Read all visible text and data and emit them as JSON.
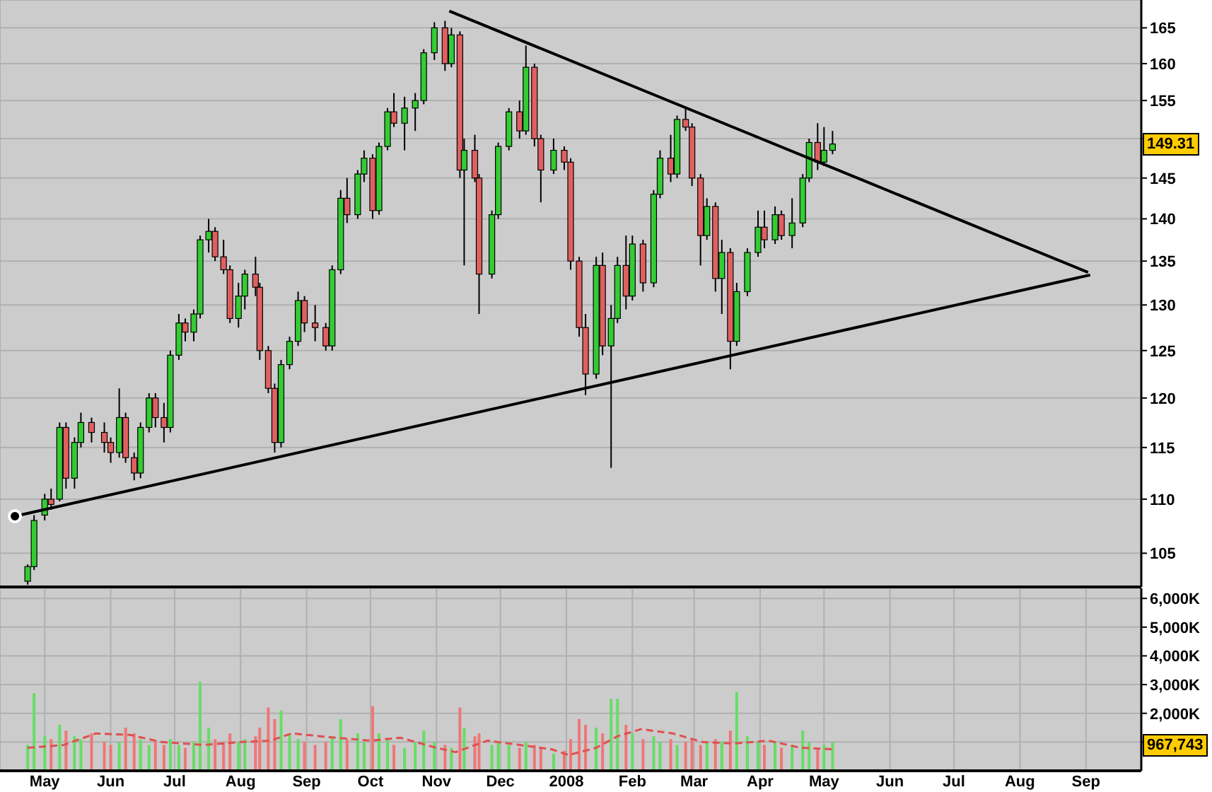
{
  "chart_data": [
    {
      "type": "candlestick",
      "log": true,
      "grid": true,
      "tick_labels": "y",
      "ylim": [
        102,
        169
      ],
      "yticks": [
        105,
        110,
        115,
        120,
        125,
        130,
        135,
        140,
        145,
        {
          "value": 150,
          "label": null
        },
        155,
        160,
        165
      ],
      "xlim": [
        "2007-04-10",
        "2008-09-27"
      ],
      "xticks": [
        {
          "value": "2007-05-01",
          "label": null
        },
        {
          "value": "2007-06-01",
          "label": null
        },
        {
          "value": "2007-07-01",
          "label": null
        },
        {
          "value": "2007-08-01",
          "label": null
        },
        {
          "value": "2007-09-01",
          "label": null
        },
        {
          "value": "2007-10-01",
          "label": null
        },
        {
          "value": "2007-11-01",
          "label": null
        },
        {
          "value": "2007-12-01",
          "label": null
        },
        {
          "value": "2008-01-01",
          "label": null
        },
        {
          "value": "2008-02-01",
          "label": null
        },
        {
          "value": "2008-03-01",
          "label": null
        },
        {
          "value": "2008-04-01",
          "label": null
        },
        {
          "value": "2008-05-01",
          "label": null
        },
        {
          "value": "2008-06-01",
          "label": null
        },
        {
          "value": "2008-07-01",
          "label": null
        },
        {
          "value": "2008-08-01",
          "label": null
        },
        {
          "value": "2008-09-01",
          "label": null
        }
      ],
      "annotations": [
        {
          "text": "149.31",
          "y": 149.31
        }
      ],
      "series": [
        {
          "x": [
            "2007-04-23",
            "2007-04-26",
            "2007-05-01",
            "2007-05-04",
            "2007-05-08",
            "2007-05-11",
            "2007-05-15",
            "2007-05-18",
            "2007-05-23",
            "2007-05-29",
            "2007-06-01",
            "2007-06-05",
            "2007-06-08",
            "2007-06-12",
            "2007-06-15",
            "2007-06-19",
            "2007-06-22",
            "2007-06-26",
            "2007-06-29",
            "2007-07-03",
            "2007-07-06",
            "2007-07-10",
            "2007-07-13",
            "2007-07-17",
            "2007-07-20",
            "2007-07-24",
            "2007-07-27",
            "2007-07-31",
            "2007-08-03",
            "2007-08-08",
            "2007-08-10",
            "2007-08-14",
            "2007-08-17",
            "2007-08-20",
            "2007-08-24",
            "2007-08-28",
            "2007-08-31",
            "2007-09-05",
            "2007-09-10",
            "2007-09-13",
            "2007-09-17",
            "2007-09-20",
            "2007-09-25",
            "2007-09-28",
            "2007-10-02",
            "2007-10-05",
            "2007-10-09",
            "2007-10-12",
            "2007-10-17",
            "2007-10-22",
            "2007-10-26",
            "2007-10-31",
            "2007-11-05",
            "2007-11-08",
            "2007-11-12",
            "2007-11-14",
            "2007-11-19",
            "2007-11-21",
            "2007-11-27",
            "2007-11-30",
            "2007-12-05",
            "2007-12-10",
            "2007-12-13",
            "2007-12-17",
            "2007-12-20",
            "2007-12-26",
            "2007-12-31",
            "2008-01-03",
            "2008-01-07",
            "2008-01-10",
            "2008-01-15",
            "2008-01-18",
            "2008-01-22",
            "2008-01-25",
            "2008-01-29",
            "2008-02-01",
            "2008-02-06",
            "2008-02-11",
            "2008-02-14",
            "2008-02-19",
            "2008-02-22",
            "2008-02-26",
            "2008-02-29",
            "2008-03-04",
            "2008-03-07",
            "2008-03-11",
            "2008-03-14",
            "2008-03-18",
            "2008-03-21",
            "2008-03-26",
            "2008-03-31",
            "2008-04-03",
            "2008-04-08",
            "2008-04-11",
            "2008-04-16",
            "2008-04-21",
            "2008-04-24",
            "2008-04-28",
            "2008-05-01",
            "2008-05-05"
          ],
          "ohlc": [
            [
              102.5,
              104,
              102.2,
              103.8
            ],
            [
              103.8,
              108.5,
              103.5,
              108
            ],
            [
              108.5,
              110.5,
              108,
              110
            ],
            [
              110,
              111,
              109,
              109.5
            ],
            [
              110,
              117.5,
              109.8,
              117
            ],
            [
              117,
              117.5,
              111,
              112
            ],
            [
              112,
              116,
              111,
              115.5
            ],
            [
              115.5,
              118.5,
              115,
              117.5
            ],
            [
              117.5,
              118,
              115.5,
              116.5
            ],
            [
              116.5,
              117.5,
              114.5,
              115.5
            ],
            [
              115.5,
              116,
              113.5,
              114.5
            ],
            [
              114.5,
              121,
              114,
              118
            ],
            [
              118,
              118.5,
              113.5,
              114
            ],
            [
              114,
              114.5,
              111.8,
              112.5
            ],
            [
              112.5,
              117.5,
              112,
              117
            ],
            [
              117,
              120.5,
              116.5,
              120
            ],
            [
              120,
              120.5,
              117,
              118
            ],
            [
              118,
              119.5,
              115.5,
              117
            ],
            [
              117,
              125,
              116.5,
              124.5
            ],
            [
              124.5,
              129,
              124,
              128
            ],
            [
              128,
              128.5,
              126,
              127
            ],
            [
              127,
              129.5,
              126,
              129
            ],
            [
              129,
              138,
              128.5,
              137.5
            ],
            [
              137.5,
              140,
              136,
              138.5
            ],
            [
              138.5,
              139,
              135,
              135.5
            ],
            [
              135.5,
              137.5,
              133.5,
              134
            ],
            [
              134,
              134.5,
              128,
              128.5
            ],
            [
              128.5,
              132.5,
              127.5,
              131
            ],
            [
              131,
              134,
              129.5,
              133.5
            ],
            [
              133.5,
              135.5,
              131,
              132
            ],
            [
              132,
              132.5,
              124,
              125
            ],
            [
              125,
              125.5,
              120.5,
              121
            ],
            [
              121,
              121.5,
              114.5,
              115.5
            ],
            [
              115.5,
              124,
              115,
              123.5
            ],
            [
              123.5,
              126.5,
              123,
              126
            ],
            [
              126,
              131.5,
              125.5,
              130.5
            ],
            [
              130.5,
              131,
              127,
              128
            ],
            [
              128,
              130,
              126,
              127.5
            ],
            [
              127.5,
              128,
              125,
              125.5
            ],
            [
              125.5,
              134.5,
              125,
              134
            ],
            [
              134,
              143.5,
              133.5,
              142.5
            ],
            [
              142.5,
              145,
              139.5,
              140.5
            ],
            [
              140.5,
              146,
              140,
              145.5
            ],
            [
              145.5,
              148.5,
              144.5,
              147.5
            ],
            [
              147.5,
              148,
              140,
              141
            ],
            [
              141,
              149.5,
              140.5,
              149
            ],
            [
              149,
              154,
              148.5,
              153.5
            ],
            [
              153.5,
              156,
              151.5,
              152
            ],
            [
              152,
              155.5,
              148.5,
              154
            ],
            [
              154,
              156,
              151,
              155
            ],
            [
              155,
              162,
              154.5,
              161.5
            ],
            [
              161.5,
              165.8,
              160.5,
              165
            ],
            [
              165,
              166,
              159,
              160
            ],
            [
              160,
              165,
              159.5,
              164
            ],
            [
              164,
              164.5,
              145,
              146
            ],
            [
              146,
              150,
              134.5,
              148.5
            ],
            [
              148.5,
              150.5,
              144.5,
              145
            ],
            [
              145,
              145.5,
              129,
              133.5
            ],
            [
              133.5,
              141,
              133,
              140.5
            ],
            [
              140.5,
              149.5,
              140,
              149
            ],
            [
              149,
              154,
              148.5,
              153.5
            ],
            [
              153.5,
              155,
              150,
              151
            ],
            [
              151,
              162.5,
              150.5,
              159.5
            ],
            [
              159.5,
              160,
              149,
              150
            ],
            [
              150,
              150.5,
              142,
              146
            ],
            [
              146,
              150,
              145.5,
              148.5
            ],
            [
              148.5,
              149,
              146,
              147
            ],
            [
              147,
              147.5,
              134,
              135
            ],
            [
              135,
              135.5,
              126.5,
              127.5
            ],
            [
              127.5,
              129,
              120.3,
              122.5
            ],
            [
              122.5,
              135.5,
              122,
              134.5
            ],
            [
              134.5,
              136,
              124.5,
              125.5
            ],
            [
              125.5,
              130,
              113,
              128.5
            ],
            [
              128.5,
              135.5,
              128,
              134.5
            ],
            [
              134.5,
              138,
              129.5,
              131
            ],
            [
              131,
              138,
              130.5,
              137
            ],
            [
              137,
              137.5,
              131.5,
              132.5
            ],
            [
              132.5,
              143.5,
              132,
              143
            ],
            [
              143,
              148.5,
              142.5,
              147.5
            ],
            [
              147.5,
              150.5,
              144.5,
              145.5
            ],
            [
              145.5,
              153,
              145,
              152.5
            ],
            [
              152.5,
              154,
              151,
              151.5
            ],
            [
              151.5,
              152,
              144,
              145
            ],
            [
              145,
              145.5,
              134.5,
              138
            ],
            [
              138,
              142.5,
              137.5,
              141.5
            ],
            [
              141.5,
              142,
              131.5,
              133
            ],
            [
              133,
              137.5,
              129,
              136
            ],
            [
              136,
              136.5,
              123,
              126
            ],
            [
              126,
              132.5,
              125.5,
              131.5
            ],
            [
              131.5,
              136.5,
              131,
              136
            ],
            [
              136,
              141,
              135.5,
              139
            ],
            [
              139,
              141,
              136.5,
              137.5
            ],
            [
              137.5,
              141.5,
              137,
              140.5
            ],
            [
              140.5,
              141,
              137.5,
              138
            ],
            [
              138,
              142.5,
              136.5,
              139.5
            ],
            [
              139.5,
              145.5,
              139,
              145
            ],
            [
              145,
              150,
              144.5,
              149.5
            ],
            [
              149.5,
              152,
              146,
              147
            ],
            [
              147,
              151.5,
              146.5,
              148.5
            ],
            [
              148.5,
              151,
              148,
              149.31
            ]
          ],
          "colors": [
            "#33cc33",
            "#33cc33",
            "#33cc33",
            "#e06060",
            "#33cc33",
            "#e06060",
            "#33cc33",
            "#33cc33",
            "#e06060",
            "#e06060",
            "#e06060",
            "#33cc33",
            "#e06060",
            "#e06060",
            "#33cc33",
            "#33cc33",
            "#e06060",
            "#e06060",
            "#33cc33",
            "#33cc33",
            "#e06060",
            "#33cc33",
            "#33cc33",
            "#33cc33",
            "#e06060",
            "#e06060",
            "#e06060",
            "#33cc33",
            "#33cc33",
            "#e06060",
            "#e06060",
            "#e06060",
            "#e06060",
            "#33cc33",
            "#33cc33",
            "#33cc33",
            "#e06060",
            "#e06060",
            "#e06060",
            "#33cc33",
            "#33cc33",
            "#e06060",
            "#33cc33",
            "#33cc33",
            "#e06060",
            "#33cc33",
            "#33cc33",
            "#e06060",
            "#33cc33",
            "#33cc33",
            "#33cc33",
            "#33cc33",
            "#e06060",
            "#33cc33",
            "#e06060",
            "#33cc33",
            "#e06060",
            "#e06060",
            "#33cc33",
            "#33cc33",
            "#33cc33",
            "#e06060",
            "#33cc33",
            "#e06060",
            "#e06060",
            "#33cc33",
            "#e06060",
            "#e06060",
            "#e06060",
            "#e06060",
            "#33cc33",
            "#e06060",
            "#33cc33",
            "#33cc33",
            "#e06060",
            "#33cc33",
            "#e06060",
            "#33cc33",
            "#33cc33",
            "#e06060",
            "#33cc33",
            "#e06060",
            "#e06060",
            "#e06060",
            "#33cc33",
            "#e06060",
            "#33cc33",
            "#e06060",
            "#33cc33",
            "#33cc33",
            "#33cc33",
            "#e06060",
            "#33cc33",
            "#e06060",
            "#33cc33",
            "#33cc33",
            "#33cc33",
            "#e06060",
            "#33cc33",
            "#33cc33"
          ]
        },
        {
          "type": "line",
          "color": "#000000",
          "x": [
            "2007-11-07",
            "2008-09-02"
          ],
          "values": [
            167.4,
            133.7
          ]
        },
        {
          "type": "line",
          "color": "#000000",
          "x": [
            "2007-04-17",
            "2008-09-03"
          ],
          "values": [
            108.4,
            133.4
          ]
        }
      ]
    },
    {
      "type": "bar",
      "grid": true,
      "ylim": [
        0,
        6350
      ],
      "yticks": [
        {
          "value": 1000,
          "label": null
        },
        {
          "value": 2000,
          "label": "2,000K"
        },
        {
          "value": 3000,
          "label": "3,000K"
        },
        {
          "value": 4000,
          "label": "4,000K"
        },
        {
          "value": 5000,
          "label": "5,000K"
        },
        {
          "value": 6000,
          "label": "6,000K"
        }
      ],
      "xlim": [
        "2007-04-10",
        "2008-09-27"
      ],
      "xticks": [
        {
          "value": "2007-05-01",
          "label": "May"
        },
        {
          "value": "2007-06-01",
          "label": "Jun"
        },
        {
          "value": "2007-07-01",
          "label": "Jul"
        },
        {
          "value": "2007-08-01",
          "label": "Aug"
        },
        {
          "value": "2007-09-01",
          "label": "Sep"
        },
        {
          "value": "2007-10-01",
          "label": "Oct"
        },
        {
          "value": "2007-11-01",
          "label": "Nov"
        },
        {
          "value": "2007-12-01",
          "label": "Dec"
        },
        {
          "value": "2008-01-01",
          "label": "2008"
        },
        {
          "value": "2008-02-01",
          "label": "Feb"
        },
        {
          "value": "2008-03-01",
          "label": "Mar"
        },
        {
          "value": "2008-04-01",
          "label": "Apr"
        },
        {
          "value": "2008-05-01",
          "label": "May"
        },
        {
          "value": "2008-06-01",
          "label": "Jun"
        },
        {
          "value": "2008-07-01",
          "label": "Jul"
        },
        {
          "value": "2008-08-01",
          "label": "Aug"
        },
        {
          "value": "2008-09-01",
          "label": "Sep"
        }
      ],
      "annotations": [
        "967,743"
      ],
      "series": [
        {
          "x": [
            "2007-04-23",
            "2007-04-26",
            "2007-05-01",
            "2007-05-04",
            "2007-05-08",
            "2007-05-11",
            "2007-05-15",
            "2007-05-18",
            "2007-05-23",
            "2007-05-29",
            "2007-06-01",
            "2007-06-05",
            "2007-06-08",
            "2007-06-12",
            "2007-06-15",
            "2007-06-19",
            "2007-06-22",
            "2007-06-26",
            "2007-06-29",
            "2007-07-03",
            "2007-07-06",
            "2007-07-10",
            "2007-07-13",
            "2007-07-17",
            "2007-07-20",
            "2007-07-24",
            "2007-07-27",
            "2007-07-31",
            "2007-08-03",
            "2007-08-08",
            "2007-08-10",
            "2007-08-14",
            "2007-08-17",
            "2007-08-20",
            "2007-08-24",
            "2007-08-28",
            "2007-08-31",
            "2007-09-05",
            "2007-09-10",
            "2007-09-13",
            "2007-09-17",
            "2007-09-20",
            "2007-09-25",
            "2007-09-28",
            "2007-10-02",
            "2007-10-05",
            "2007-10-09",
            "2007-10-12",
            "2007-10-17",
            "2007-10-22",
            "2007-10-26",
            "2007-10-31",
            "2007-11-05",
            "2007-11-08",
            "2007-11-12",
            "2007-11-14",
            "2007-11-19",
            "2007-11-21",
            "2007-11-27",
            "2007-11-30",
            "2007-12-05",
            "2007-12-10",
            "2007-12-13",
            "2007-12-17",
            "2007-12-20",
            "2007-12-26",
            "2007-12-31",
            "2008-01-03",
            "2008-01-07",
            "2008-01-10",
            "2008-01-15",
            "2008-01-18",
            "2008-01-22",
            "2008-01-25",
            "2008-01-29",
            "2008-02-01",
            "2008-02-06",
            "2008-02-11",
            "2008-02-14",
            "2008-02-19",
            "2008-02-22",
            "2008-02-26",
            "2008-02-29",
            "2008-03-04",
            "2008-03-07",
            "2008-03-11",
            "2008-03-14",
            "2008-03-18",
            "2008-03-21",
            "2008-03-26",
            "2008-03-31",
            "2008-04-03",
            "2008-04-08",
            "2008-04-11",
            "2008-04-16",
            "2008-04-21",
            "2008-04-24",
            "2008-04-28",
            "2008-05-01",
            "2008-05-05"
          ],
          "values": [
            900,
            2700,
            1200,
            1100,
            1600,
            1400,
            1200,
            1100,
            1300,
            1000,
            900,
            1000,
            1500,
            1300,
            1100,
            900,
            1000,
            900,
            1100,
            900,
            800,
            1000,
            3100,
            1500,
            1100,
            1000,
            1300,
            1000,
            1100,
            1200,
            1500,
            2200,
            1800,
            2100,
            1300,
            1100,
            1000,
            900,
            1000,
            1200,
            1800,
            1100,
            1300,
            1000,
            2250,
            1300,
            1100,
            900,
            800,
            1000,
            1400,
            1000,
            900,
            800,
            2200,
            1500,
            1200,
            1300,
            900,
            1000,
            900,
            800,
            1000,
            900,
            800,
            600,
            700,
            1100,
            1800,
            1600,
            1500,
            1300,
            2500,
            2500,
            1600,
            1300,
            1100,
            1200,
            1000,
            1100,
            900,
            1000,
            1100,
            900,
            1000,
            1100,
            1000,
            1400,
            2750,
            1200,
            1000,
            900,
            1000,
            800,
            900,
            1400,
            1000,
            800,
            900,
            1000
          ],
          "colors": [
            "#66dd66",
            "#66dd66",
            "#66dd66",
            "#ee7777",
            "#66dd66",
            "#ee7777",
            "#66dd66",
            "#66dd66",
            "#ee7777",
            "#ee7777",
            "#ee7777",
            "#66dd66",
            "#ee7777",
            "#ee7777",
            "#66dd66",
            "#66dd66",
            "#ee7777",
            "#ee7777",
            "#66dd66",
            "#66dd66",
            "#ee7777",
            "#66dd66",
            "#66dd66",
            "#66dd66",
            "#ee7777",
            "#ee7777",
            "#ee7777",
            "#66dd66",
            "#66dd66",
            "#ee7777",
            "#ee7777",
            "#ee7777",
            "#ee7777",
            "#66dd66",
            "#66dd66",
            "#66dd66",
            "#ee7777",
            "#ee7777",
            "#ee7777",
            "#66dd66",
            "#66dd66",
            "#ee7777",
            "#66dd66",
            "#66dd66",
            "#ee7777",
            "#66dd66",
            "#66dd66",
            "#ee7777",
            "#66dd66",
            "#66dd66",
            "#66dd66",
            "#66dd66",
            "#ee7777",
            "#66dd66",
            "#ee7777",
            "#66dd66",
            "#ee7777",
            "#ee7777",
            "#66dd66",
            "#66dd66",
            "#66dd66",
            "#ee7777",
            "#66dd66",
            "#ee7777",
            "#ee7777",
            "#66dd66",
            "#ee7777",
            "#ee7777",
            "#ee7777",
            "#ee7777",
            "#66dd66",
            "#ee7777",
            "#66dd66",
            "#66dd66",
            "#ee7777",
            "#66dd66",
            "#ee7777",
            "#66dd66",
            "#66dd66",
            "#ee7777",
            "#66dd66",
            "#ee7777",
            "#ee7777",
            "#ee7777",
            "#66dd66",
            "#ee7777",
            "#66dd66",
            "#ee7777",
            "#66dd66",
            "#66dd66",
            "#66dd66",
            "#ee7777",
            "#66dd66",
            "#ee7777",
            "#66dd66",
            "#66dd66",
            "#66dd66",
            "#ee7777",
            "#66dd66",
            "#66dd66"
          ]
        },
        {
          "type": "line",
          "color": "#e05050",
          "line_style": "dashed",
          "x": [
            "2007-04-23",
            "2007-05-10",
            "2007-05-25",
            "2007-06-10",
            "2007-06-25",
            "2007-07-15",
            "2007-08-01",
            "2007-08-15",
            "2007-08-25",
            "2007-09-15",
            "2007-10-01",
            "2007-10-15",
            "2007-11-01",
            "2007-11-10",
            "2007-11-25",
            "2007-12-10",
            "2007-12-25",
            "2008-01-02",
            "2008-01-15",
            "2008-01-25",
            "2008-02-05",
            "2008-02-20",
            "2008-03-05",
            "2008-03-20",
            "2008-04-05",
            "2008-04-20",
            "2008-05-05"
          ],
          "values": [
            800,
            900,
            1300,
            1250,
            1000,
            900,
            1000,
            1050,
            1300,
            1150,
            1050,
            1150,
            800,
            650,
            1050,
            900,
            750,
            550,
            800,
            1200,
            1450,
            1300,
            1000,
            950,
            1050,
            800,
            750
          ]
        }
      ]
    }
  ]
}
